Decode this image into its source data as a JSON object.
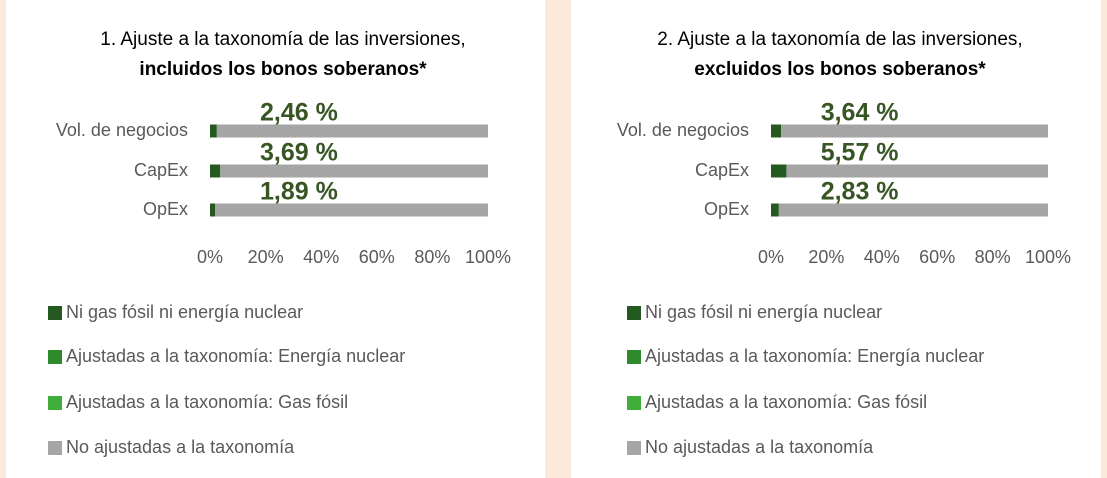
{
  "chart_data": [
    {
      "type": "bar",
      "orientation": "horizontal",
      "stacked": true,
      "title": "1. Ajuste a la taxonomía de las inversiones,",
      "subtitle": "incluidos los bonos soberanos*",
      "categories": [
        "Vol. de negocios",
        "CapEx",
        "OpEx"
      ],
      "series": [
        {
          "name": "Ni gas fósil ni energía nuclear",
          "color": "#245a1f",
          "values": [
            2.46,
            3.69,
            1.89
          ],
          "value_labels": [
            "2,46 %",
            "3,69 %",
            "1,89 %"
          ]
        },
        {
          "name": "Ajustadas a la taxonomía: Energía nuclear",
          "color": "#2e8a2a",
          "values": [
            0,
            0,
            0
          ]
        },
        {
          "name": "Ajustadas a la taxonomía: Gas fósil",
          "color": "#3fae3a",
          "values": [
            0,
            0,
            0
          ]
        },
        {
          "name": "No ajustadas a la taxonomía",
          "color": "#a5a5a5",
          "values": [
            97.54,
            96.31,
            98.11
          ]
        }
      ],
      "xlim": [
        0,
        100
      ],
      "xticks": [
        {
          "value": 0,
          "label": "0%"
        },
        {
          "value": 20,
          "label": "20%"
        },
        {
          "value": 40,
          "label": "40%"
        },
        {
          "value": 60,
          "label": "60%"
        },
        {
          "value": 80,
          "label": "80%"
        },
        {
          "value": 100,
          "label": "100%"
        }
      ],
      "legend": "bottom"
    },
    {
      "type": "bar",
      "orientation": "horizontal",
      "stacked": true,
      "title": "2. Ajuste a la taxonomía de las inversiones,",
      "subtitle": "excluidos los bonos soberanos*",
      "categories": [
        "Vol. de negocios",
        "CapEx",
        "OpEx"
      ],
      "series": [
        {
          "name": "Ni gas fósil ni energía nuclear",
          "color": "#245a1f",
          "values": [
            3.64,
            5.57,
            2.83
          ],
          "value_labels": [
            "3,64 %",
            "5,57 %",
            "2,83 %"
          ]
        },
        {
          "name": "Ajustadas a la taxonomía: Energía nuclear",
          "color": "#2e8a2a",
          "values": [
            0,
            0,
            0
          ]
        },
        {
          "name": "Ajustadas a la taxonomía: Gas fósil",
          "color": "#3fae3a",
          "values": [
            0,
            0,
            0
          ]
        },
        {
          "name": "No ajustadas a la taxonomía",
          "color": "#a5a5a5",
          "values": [
            96.36,
            94.43,
            97.17
          ]
        }
      ],
      "xlim": [
        0,
        100
      ],
      "xticks": [
        {
          "value": 0,
          "label": "0%"
        },
        {
          "value": 20,
          "label": "20%"
        },
        {
          "value": 40,
          "label": "40%"
        },
        {
          "value": 60,
          "label": "60%"
        },
        {
          "value": 80,
          "label": "80%"
        },
        {
          "value": 100,
          "label": "100%"
        }
      ],
      "legend": "bottom"
    }
  ]
}
